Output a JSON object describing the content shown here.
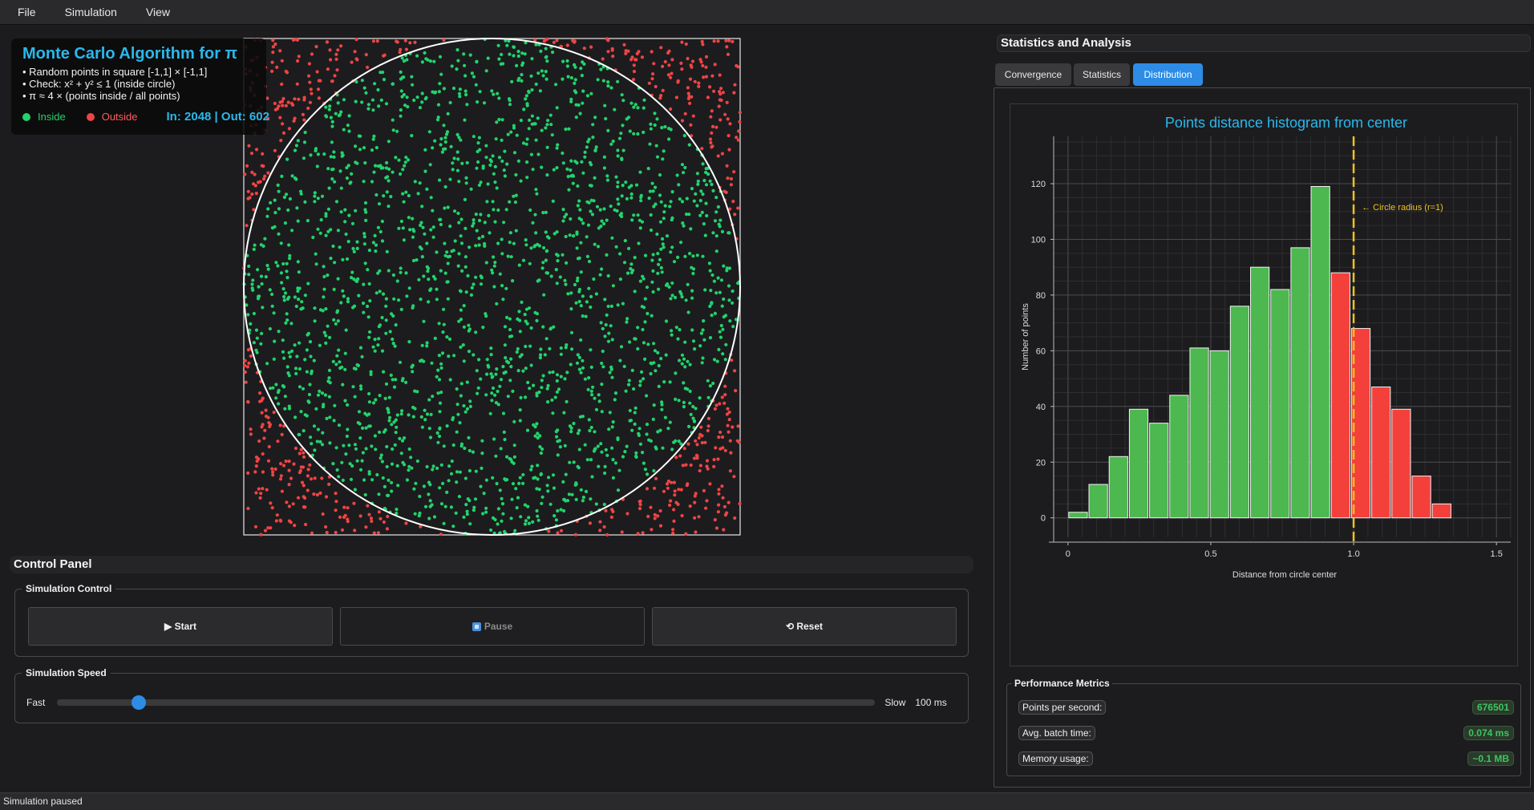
{
  "menubar": {
    "items": [
      "File",
      "Simulation",
      "View"
    ]
  },
  "simulation": {
    "inside_color": "#22d36c",
    "outside_color": "#ef4444",
    "inside_count": 2048,
    "outside_count": 602
  },
  "info": {
    "title": "Monte Carlo Algorithm for π",
    "lines": [
      "• Random points in square [-1,1] × [-1,1]",
      "• Check: x² + y² ≤ 1 (inside circle)",
      "• π ≈ 4 × (points inside / all points)"
    ],
    "legend_inside": "Inside",
    "legend_outside": "Outside",
    "counts": "In: 2048 | Out: 602"
  },
  "control_panel": {
    "title": "Control Panel",
    "sim_control_title": "Simulation Control",
    "start_label": "▶ Start",
    "pause_label": "Pause",
    "reset_label": "⟲ Reset",
    "speed_title": "Simulation Speed",
    "fast_label": "Fast",
    "slow_label": "Slow",
    "speed_value": "100 ms",
    "speed_fraction": 0.1
  },
  "statusbar": {
    "text": "Simulation paused"
  },
  "stats": {
    "title": "Statistics and Analysis",
    "tabs": [
      "Convergence",
      "Statistics",
      "Distribution"
    ],
    "active_tab": "Distribution"
  },
  "chart_data": {
    "type": "bar",
    "title": "Points distance histogram from center",
    "xlabel": "Distance from circle center",
    "ylabel": "Number of points",
    "xlim": [
      -0.05,
      1.55
    ],
    "ylim": [
      -7,
      137
    ],
    "xticks": [
      0,
      0.5,
      1.0,
      1.5
    ],
    "xtick_labels": [
      "0",
      "0.5",
      "1.0",
      "1.5"
    ],
    "yticks": [
      0,
      20,
      40,
      60,
      80,
      100,
      120
    ],
    "bin_width": 0.0707,
    "grid": true,
    "bins": [
      {
        "x": 0.0354,
        "value": 2,
        "group": "inside"
      },
      {
        "x": 0.1061,
        "value": 12,
        "group": "inside"
      },
      {
        "x": 0.1768,
        "value": 22,
        "group": "inside"
      },
      {
        "x": 0.2475,
        "value": 39,
        "group": "inside"
      },
      {
        "x": 0.3182,
        "value": 34,
        "group": "inside"
      },
      {
        "x": 0.3889,
        "value": 44,
        "group": "inside"
      },
      {
        "x": 0.4596,
        "value": 61,
        "group": "inside"
      },
      {
        "x": 0.5303,
        "value": 60,
        "group": "inside"
      },
      {
        "x": 0.601,
        "value": 76,
        "group": "inside"
      },
      {
        "x": 0.6717,
        "value": 90,
        "group": "inside"
      },
      {
        "x": 0.7424,
        "value": 82,
        "group": "inside"
      },
      {
        "x": 0.8131,
        "value": 97,
        "group": "inside"
      },
      {
        "x": 0.8838,
        "value": 119,
        "group": "inside"
      },
      {
        "x": 0.9545,
        "value": 88,
        "group": "outside"
      },
      {
        "x": 1.0252,
        "value": 68,
        "group": "outside"
      },
      {
        "x": 1.0959,
        "value": 47,
        "group": "outside"
      },
      {
        "x": 1.1666,
        "value": 39,
        "group": "outside"
      },
      {
        "x": 1.2373,
        "value": 15,
        "group": "outside"
      },
      {
        "x": 1.308,
        "value": 5,
        "group": "outside"
      }
    ],
    "inside_color": "#4cb84f",
    "outside_color": "#f4403b",
    "reference_line": {
      "x": 1.0,
      "label": "← Circle radius (r=1)",
      "color": "#f1c21b"
    }
  },
  "performance": {
    "title": "Performance Metrics",
    "rows": [
      {
        "label": "Points per second:",
        "value": "676501"
      },
      {
        "label": "Avg. batch time:",
        "value": "0.074 ms"
      },
      {
        "label": "Memory usage:",
        "value": "~0.1 MB"
      }
    ]
  }
}
